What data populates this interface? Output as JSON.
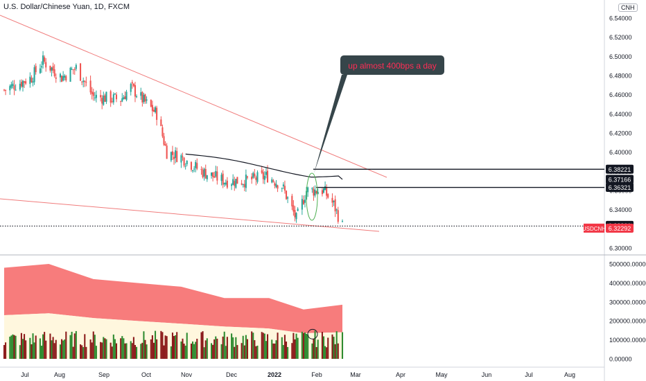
{
  "title": "U.S. Dollar/Chinese Yuan, 1D, FXCM",
  "currency_badge": "CNH",
  "annotation": "up almost 400bps a day",
  "colors": {
    "bull": "#26a69a",
    "bear": "#ef5350",
    "trendline": "#f07b7b",
    "level_line": "#131722",
    "volume_band": "#f77c7c",
    "volume_base": "#fff7de",
    "vol_bull": "#2e8b30",
    "vol_bear": "#8b1a1a",
    "callout_bg": "#36454a",
    "callout_text": "#ff2d55",
    "symbol_tag": "#f23645"
  },
  "chart_data": [
    {
      "type": "candlestick",
      "symbol": "USDCNH",
      "ylim": [
        6.3,
        6.55
      ],
      "y_ticks": [
        "6.54000",
        "6.52000",
        "6.50000",
        "6.48000",
        "6.46000",
        "6.44000",
        "6.42000",
        "6.40000",
        "6.38000",
        "6.36000",
        "6.34000",
        "6.32000",
        "6.30000"
      ],
      "x_ticks": [
        "Jul",
        "Aug",
        "Sep",
        "Oct",
        "Nov",
        "Dec",
        "2022",
        "Feb",
        "Mar",
        "Apr",
        "May",
        "Jun",
        "Jul",
        "Aug"
      ],
      "price_labels": [
        "6.38221",
        "6.37166",
        "6.36321",
        "6.32361"
      ],
      "last_price_label": "USDCNH",
      "last_price": "6.32292",
      "levels": [
        6.38221,
        6.36321
      ],
      "moving_average_end": 6.37166,
      "close_path": [
        {
          "date": "2021-07-01",
          "close": 6.465
        },
        {
          "date": "2021-07-20",
          "close": 6.478
        },
        {
          "date": "2021-07-28",
          "close": 6.495
        },
        {
          "date": "2021-08-10",
          "close": 6.478
        },
        {
          "date": "2021-08-20",
          "close": 6.488
        },
        {
          "date": "2021-09-01",
          "close": 6.458
        },
        {
          "date": "2021-09-20",
          "close": 6.455
        },
        {
          "date": "2021-09-27",
          "close": 6.468
        },
        {
          "date": "2021-10-05",
          "close": 6.455
        },
        {
          "date": "2021-10-15",
          "close": 6.44
        },
        {
          "date": "2021-10-22",
          "close": 6.4
        },
        {
          "date": "2021-11-01",
          "close": 6.395
        },
        {
          "date": "2021-11-15",
          "close": 6.38
        },
        {
          "date": "2021-12-01",
          "close": 6.37
        },
        {
          "date": "2021-12-15",
          "close": 6.37
        },
        {
          "date": "2021-12-31",
          "close": 6.375
        },
        {
          "date": "2022-01-10",
          "close": 6.365
        },
        {
          "date": "2022-01-20",
          "close": 6.33
        },
        {
          "date": "2022-01-27",
          "close": 6.36
        },
        {
          "date": "2022-02-08",
          "close": 6.36
        },
        {
          "date": "2022-02-15",
          "close": 6.345
        },
        {
          "date": "2022-02-21",
          "close": 6.323
        }
      ]
    },
    {
      "type": "bar",
      "name": "volume",
      "ylim": [
        0,
        550000
      ],
      "y_ticks": [
        "500000.00000",
        "400000.00000",
        "300000.00000",
        "200000.00000",
        "100000.00000",
        "0.00000"
      ],
      "band_upper": [
        {
          "date": "2021-07-01",
          "value": 480000
        },
        {
          "date": "2021-08-01",
          "value": 500000
        },
        {
          "date": "2021-09-01",
          "value": 420000
        },
        {
          "date": "2021-10-01",
          "value": 400000
        },
        {
          "date": "2021-11-01",
          "value": 380000
        },
        {
          "date": "2021-12-01",
          "value": 320000
        },
        {
          "date": "2022-01-01",
          "value": 320000
        },
        {
          "date": "2022-01-25",
          "value": 260000
        },
        {
          "date": "2022-02-21",
          "value": 285000
        }
      ],
      "band_lower": [
        {
          "date": "2021-07-01",
          "value": 230000
        },
        {
          "date": "2021-08-01",
          "value": 240000
        },
        {
          "date": "2021-09-01",
          "value": 215000
        },
        {
          "date": "2021-10-01",
          "value": 200000
        },
        {
          "date": "2021-11-01",
          "value": 185000
        },
        {
          "date": "2021-12-01",
          "value": 170000
        },
        {
          "date": "2022-01-01",
          "value": 160000
        },
        {
          "date": "2022-01-25",
          "value": 135000
        },
        {
          "date": "2022-02-21",
          "value": 140000
        }
      ],
      "typical_volume": 110000
    }
  ]
}
